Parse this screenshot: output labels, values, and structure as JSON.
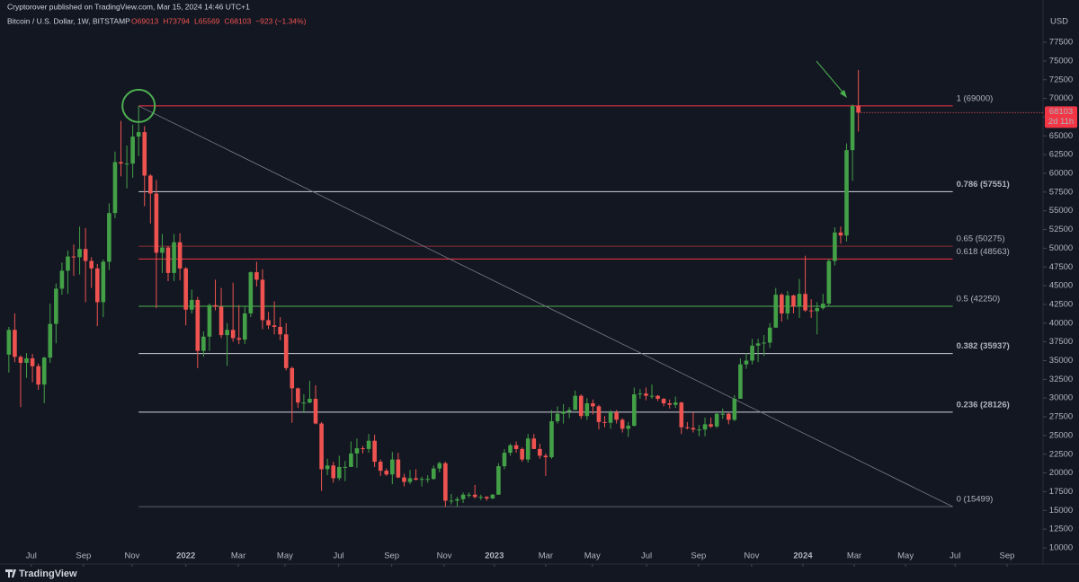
{
  "header": {
    "publisher": "Cryptorover published on TradingView.com, Mar 15, 2024 14:46 UTC+1",
    "symbol": "Bitcoin / U.S. Dollar, 1W, BITSTAMP",
    "ohlc": [
      "O69013",
      "H73794",
      "L65569",
      "C68103",
      "−923 (−1.34%)"
    ]
  },
  "chart_data": {
    "type": "candlestick",
    "currency": "USD",
    "countdown": "2d 11h",
    "up_color": "#43a047",
    "down_color": "#ef5350",
    "xlim": [
      -1.5,
      175.3
    ],
    "ylim": [
      8560,
      83140
    ],
    "xticks": [
      {
        "value": 3.8,
        "label": "Jul"
      },
      {
        "value": 12.65,
        "label": "Sep"
      },
      {
        "value": 20.9,
        "label": "Nov"
      },
      {
        "value": 30,
        "label": "2022"
      },
      {
        "value": 38.9,
        "label": "Mar"
      },
      {
        "value": 46.8,
        "label": "May"
      },
      {
        "value": 55.9,
        "label": "Jul"
      },
      {
        "value": 64.9,
        "label": "Sep"
      },
      {
        "value": 73.8,
        "label": "Nov"
      },
      {
        "value": 82.3,
        "label": "2023"
      },
      {
        "value": 91,
        "label": "Mar"
      },
      {
        "value": 98.9,
        "label": "May"
      },
      {
        "value": 108.1,
        "label": "Jul"
      },
      {
        "value": 116.9,
        "label": "Sep"
      },
      {
        "value": 125.9,
        "label": "Nov"
      },
      {
        "value": 134.6,
        "label": "2024"
      },
      {
        "value": 143.3,
        "label": "Mar"
      },
      {
        "value": 152,
        "label": "May"
      },
      {
        "value": 160.4,
        "label": "Jul"
      },
      {
        "value": 169.2,
        "label": "Sep"
      }
    ],
    "yticks": [
      10000,
      12500,
      15000,
      17500,
      20000,
      22500,
      25000,
      27500,
      30000,
      32500,
      35000,
      37500,
      40000,
      42500,
      45000,
      47500,
      50000,
      52500,
      55000,
      57500,
      60000,
      62500,
      65000,
      67500,
      70000,
      72500,
      75000,
      77500
    ],
    "ohlc": [
      [
        35800,
        39500,
        33400,
        39100
      ],
      [
        39100,
        41300,
        34800,
        35500
      ],
      [
        35500,
        35700,
        28800,
        34700
      ],
      [
        34700,
        36000,
        32700,
        35300
      ],
      [
        35300,
        35900,
        32100,
        34250
      ],
      [
        34250,
        34600,
        31100,
        31800
      ],
      [
        31800,
        35500,
        29300,
        35400
      ],
      [
        35400,
        42600,
        34700,
        39900
      ],
      [
        39900,
        45300,
        37300,
        44600
      ],
      [
        44600,
        48100,
        43800,
        47000
      ],
      [
        47000,
        49700,
        43900,
        48900
      ],
      [
        48900,
        50500,
        46300,
        48800
      ],
      [
        48800,
        52900,
        46500,
        49900
      ],
      [
        49900,
        52700,
        42800,
        48300
      ],
      [
        48300,
        48800,
        44700,
        47300
      ],
      [
        47300,
        47900,
        39600,
        42800
      ],
      [
        42800,
        48500,
        40800,
        48200
      ],
      [
        48200,
        56000,
        47100,
        54700
      ],
      [
        54700,
        62900,
        54000,
        61500
      ],
      [
        61500,
        67000,
        59600,
        61300
      ],
      [
        61300,
        63700,
        58000,
        61300
      ],
      [
        61300,
        66500,
        59400,
        64900
      ],
      [
        64900,
        69000,
        62300,
        65500
      ],
      [
        65500,
        66300,
        55600,
        59700
      ],
      [
        59700,
        59900,
        53300,
        57300
      ],
      [
        57300,
        59100,
        42000,
        49400
      ],
      [
        49400,
        51900,
        46700,
        50100
      ],
      [
        50100,
        50300,
        45600,
        46700
      ],
      [
        46700,
        51900,
        45600,
        50800
      ],
      [
        50800,
        52000,
        45700,
        47300
      ],
      [
        47300,
        47500,
        39700,
        41800
      ],
      [
        41800,
        44500,
        41300,
        43100
      ],
      [
        43100,
        43500,
        34000,
        36300
      ],
      [
        36300,
        38900,
        35500,
        38200
      ],
      [
        38200,
        42600,
        36300,
        42400
      ],
      [
        42400,
        45800,
        41700,
        42200
      ],
      [
        42200,
        44700,
        38000,
        38400
      ],
      [
        38400,
        40000,
        34300,
        39100
      ],
      [
        39100,
        45400,
        37500,
        38000
      ],
      [
        38000,
        42400,
        37200,
        37800
      ],
      [
        37800,
        42300,
        37200,
        41300
      ],
      [
        41300,
        46900,
        40800,
        46800
      ],
      [
        46800,
        48200,
        44900,
        45800
      ],
      [
        45800,
        47200,
        39200,
        40400
      ],
      [
        40400,
        41500,
        39200,
        39700
      ],
      [
        39700,
        42900,
        38500,
        39500
      ],
      [
        39500,
        40800,
        37700,
        38500
      ],
      [
        38500,
        40000,
        33700,
        34000
      ],
      [
        34000,
        34200,
        26700,
        31300
      ],
      [
        31300,
        31400,
        28700,
        29400
      ],
      [
        29400,
        30500,
        28000,
        29400
      ],
      [
        29400,
        32300,
        29300,
        29900
      ],
      [
        29900,
        31700,
        26500,
        26600
      ],
      [
        26600,
        26800,
        17600,
        20500
      ],
      [
        20500,
        21900,
        19700,
        21000
      ],
      [
        21000,
        21500,
        18700,
        19300
      ],
      [
        19300,
        22300,
        19000,
        20800
      ],
      [
        20800,
        21600,
        18900,
        20800
      ],
      [
        20800,
        24200,
        20800,
        22600
      ],
      [
        22600,
        24600,
        20700,
        23300
      ],
      [
        23300,
        23600,
        22600,
        23200
      ],
      [
        23200,
        25200,
        22700,
        24300
      ],
      [
        24300,
        25100,
        20800,
        21500
      ],
      [
        21500,
        21800,
        19600,
        20300
      ],
      [
        20300,
        20600,
        19600,
        19800
      ],
      [
        19800,
        22800,
        18500,
        21800
      ],
      [
        21800,
        22700,
        19300,
        19400
      ],
      [
        19400,
        19900,
        18200,
        18800
      ],
      [
        18800,
        20400,
        18500,
        19300
      ],
      [
        19300,
        20500,
        19000,
        19100
      ],
      [
        19100,
        19500,
        18200,
        19200
      ],
      [
        19200,
        19700,
        18700,
        19200
      ],
      [
        19200,
        21000,
        19100,
        20600
      ],
      [
        20600,
        21500,
        20100,
        21300
      ],
      [
        21300,
        21500,
        15500,
        16300
      ],
      [
        16300,
        17200,
        15800,
        16300
      ],
      [
        16300,
        16800,
        15500,
        16500
      ],
      [
        16500,
        17400,
        16000,
        17100
      ],
      [
        17100,
        17400,
        16700,
        17100
      ],
      [
        17100,
        18400,
        16600,
        16800
      ],
      [
        16800,
        17100,
        16400,
        16800
      ],
      [
        16800,
        16900,
        16300,
        16600
      ],
      [
        16600,
        17200,
        16500,
        17100
      ],
      [
        17100,
        21300,
        17100,
        20900
      ],
      [
        20900,
        23200,
        20500,
        22700
      ],
      [
        22700,
        23900,
        22300,
        23700
      ],
      [
        23700,
        24200,
        22700,
        23200
      ],
      [
        23200,
        23400,
        21500,
        21800
      ],
      [
        21800,
        25200,
        21400,
        24600
      ],
      [
        24600,
        25200,
        23200,
        23200
      ],
      [
        23200,
        23900,
        21900,
        22300
      ],
      [
        22300,
        22600,
        19600,
        22100
      ],
      [
        22100,
        28400,
        21900,
        26900
      ],
      [
        26900,
        28900,
        26600,
        27900
      ],
      [
        27900,
        29200,
        26600,
        28200
      ],
      [
        28200,
        28800,
        27300,
        28400
      ],
      [
        28400,
        31000,
        28400,
        30300
      ],
      [
        30300,
        30500,
        27200,
        27600
      ],
      [
        27600,
        30000,
        27100,
        29300
      ],
      [
        29300,
        29800,
        27800,
        28900
      ],
      [
        28900,
        29100,
        25800,
        26800
      ],
      [
        26800,
        27600,
        26100,
        26700
      ],
      [
        26700,
        28400,
        25900,
        28100
      ],
      [
        28100,
        28400,
        26600,
        27100
      ],
      [
        27100,
        27300,
        25400,
        25900
      ],
      [
        25900,
        26800,
        24800,
        26300
      ],
      [
        26300,
        31400,
        26200,
        30500
      ],
      [
        30500,
        31200,
        29900,
        30600
      ],
      [
        30600,
        31400,
        29700,
        30300
      ],
      [
        30300,
        31800,
        29900,
        30300
      ],
      [
        30300,
        30400,
        29600,
        29900
      ],
      [
        29900,
        30000,
        28900,
        29300
      ],
      [
        29300,
        29800,
        28600,
        29100
      ],
      [
        29100,
        30200,
        28700,
        29400
      ],
      [
        29400,
        29500,
        25200,
        26100
      ],
      [
        26100,
        26800,
        25800,
        26000
      ],
      [
        26000,
        28100,
        25400,
        25800
      ],
      [
        25800,
        26400,
        24900,
        25800
      ],
      [
        25800,
        27400,
        24900,
        26500
      ],
      [
        26500,
        27400,
        26000,
        26200
      ],
      [
        26200,
        28000,
        26000,
        27900
      ],
      [
        27900,
        28600,
        27200,
        27900
      ],
      [
        27900,
        28000,
        26500,
        27100
      ],
      [
        27100,
        30400,
        26900,
        29900
      ],
      [
        29900,
        35300,
        29900,
        34500
      ],
      [
        34500,
        36000,
        33900,
        35000
      ],
      [
        35000,
        37900,
        34500,
        37000
      ],
      [
        37000,
        37900,
        34800,
        37300
      ],
      [
        37300,
        38400,
        35600,
        37400
      ],
      [
        37400,
        40000,
        36700,
        39400
      ],
      [
        39400,
        44700,
        39400,
        43800
      ],
      [
        43800,
        44000,
        40200,
        41300
      ],
      [
        41300,
        44300,
        40500,
        43700
      ],
      [
        43700,
        43800,
        41300,
        42200
      ],
      [
        42200,
        45900,
        40700,
        43900
      ],
      [
        43900,
        49000,
        41500,
        41700
      ],
      [
        41700,
        43200,
        40700,
        41600
      ],
      [
        41600,
        42800,
        38500,
        42000
      ],
      [
        42000,
        43900,
        41800,
        42600
      ],
      [
        42600,
        48600,
        42300,
        48300
      ],
      [
        48300,
        52800,
        47700,
        52100
      ],
      [
        52100,
        52900,
        50600,
        51700
      ],
      [
        51700,
        64000,
        50900,
        63100
      ],
      [
        63100,
        69200,
        59000,
        69000
      ],
      [
        69013,
        73794,
        65569,
        68103
      ]
    ],
    "fib_span": [
      22,
      160
    ],
    "fib_levels": [
      {
        "label": "1 (69000)",
        "value": 69000,
        "color": "#f23645"
      },
      {
        "label": "0.786 (57551)",
        "value": 57551,
        "color": "#d1d4dc"
      },
      {
        "label": "0.65 (50275)",
        "value": 50275,
        "color": "#8e2b35"
      },
      {
        "label": "0.618 (48563)",
        "value": 48563,
        "color": "#f23645"
      },
      {
        "label": "0.5 (42250)",
        "value": 42250,
        "color": "#4caf50"
      },
      {
        "label": "0.382 (35937)",
        "value": 35937,
        "color": "#d1d4dc"
      },
      {
        "label": "0.236 (28126)",
        "value": 28126,
        "color": "#d1d4dc"
      },
      {
        "label": "0 (15499)",
        "value": 15499,
        "color": "#5d606b"
      }
    ],
    "trendline": {
      "x": [
        22,
        160
      ],
      "y": [
        69000,
        15499
      ]
    }
  },
  "footer": {
    "brand": "TradingView"
  }
}
